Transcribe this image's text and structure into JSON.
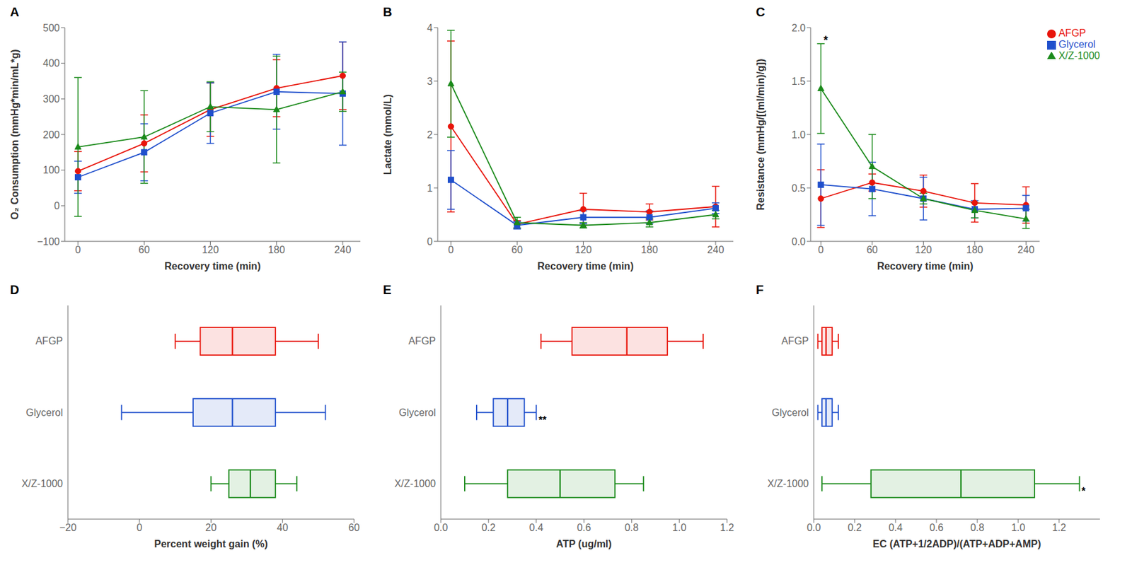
{
  "chart_data": [
    {
      "type": "line",
      "title": "A",
      "x_label": "Recovery time (min)",
      "y_label": "O₂ Consumption (mmHg*min/mL*g)",
      "x": [
        0,
        60,
        120,
        180,
        240
      ],
      "xlim": [
        -12,
        256
      ],
      "xticks": [
        0,
        60,
        120,
        180,
        240
      ],
      "ylim": [
        -100,
        500
      ],
      "yticks": [
        {
          "value": -100,
          "label": "−100"
        },
        0,
        100,
        200,
        300,
        400,
        500
      ],
      "series": [
        {
          "name": "AFGP",
          "color": "#E8140A",
          "marker": "circle",
          "values": [
            97,
            175,
            270,
            330,
            365
          ],
          "errors": [
            55,
            80,
            75,
            80,
            95
          ]
        },
        {
          "name": "Glycerol",
          "color": "#1F4FCC",
          "marker": "square",
          "values": [
            80,
            150,
            260,
            320,
            315
          ],
          "errors": [
            45,
            80,
            85,
            105,
            145
          ]
        },
        {
          "name": "X/Z-1000",
          "color": "#1A8A1A",
          "marker": "triangle",
          "values": [
            165,
            193,
            278,
            270,
            320
          ],
          "errors": [
            195,
            130,
            70,
            150,
            55
          ]
        }
      ]
    },
    {
      "type": "line",
      "title": "B",
      "x_label": "Recovery time (min)",
      "y_label": "Lactate (mmol/L)",
      "x": [
        0,
        60,
        120,
        180,
        240
      ],
      "xlim": [
        -12,
        256
      ],
      "xticks": [
        0,
        60,
        120,
        180,
        240
      ],
      "ylim": [
        0,
        4
      ],
      "yticks": [
        0,
        1,
        2,
        3,
        4
      ],
      "series": [
        {
          "name": "AFGP",
          "color": "#E8140A",
          "marker": "circle",
          "values": [
            2.15,
            0.32,
            0.6,
            0.55,
            0.65
          ],
          "errors": [
            1.6,
            0.07,
            0.3,
            0.15,
            0.38
          ]
        },
        {
          "name": "Glycerol",
          "color": "#1F4FCC",
          "marker": "square",
          "values": [
            1.15,
            0.3,
            0.45,
            0.45,
            0.62
          ],
          "errors": [
            0.55,
            0.07,
            0.12,
            0.12,
            0.1
          ]
        },
        {
          "name": "X/Z-1000",
          "color": "#1A8A1A",
          "marker": "triangle",
          "values": [
            2.95,
            0.35,
            0.3,
            0.35,
            0.5
          ],
          "errors": [
            1.0,
            0.1,
            0.05,
            0.08,
            0.08
          ]
        }
      ]
    },
    {
      "type": "line",
      "title": "C",
      "x_label": "Recovery time (min)",
      "y_label": "Resistance (mmHg/[(ml/min)/g])",
      "x": [
        0,
        60,
        120,
        180,
        240
      ],
      "xlim": [
        -12,
        256
      ],
      "xticks": [
        0,
        60,
        120,
        180,
        240
      ],
      "ylim": [
        0,
        2.0
      ],
      "yticks": [
        {
          "value": 0,
          "label": "0.0"
        },
        0.5,
        {
          "value": 1,
          "label": "1.0"
        },
        1.5,
        {
          "value": 2,
          "label": "2.0"
        }
      ],
      "legend": "upper right",
      "annotations": [
        {
          "text": "*",
          "x": 3,
          "y": 1.93
        }
      ],
      "series": [
        {
          "name": "AFGP",
          "color": "#E8140A",
          "marker": "circle",
          "values": [
            0.4,
            0.55,
            0.47,
            0.36,
            0.34
          ],
          "errors": [
            0.27,
            0.08,
            0.15,
            0.18,
            0.17
          ]
        },
        {
          "name": "Glycerol",
          "color": "#1F4FCC",
          "marker": "square",
          "values": [
            0.53,
            0.49,
            0.4,
            0.3,
            0.31
          ],
          "errors": [
            0.38,
            0.25,
            0.2,
            0.08,
            0.12
          ]
        },
        {
          "name": "X/Z-1000",
          "color": "#1A8A1A",
          "marker": "triangle",
          "values": [
            1.43,
            0.7,
            0.4,
            0.29,
            0.21
          ],
          "errors": [
            0.42,
            0.3,
            0.05,
            0.07,
            0.09
          ]
        }
      ]
    },
    {
      "type": "box",
      "orientation": "horizontal",
      "title": "D",
      "x_label": "Percent weight gain (%)",
      "xlim": [
        -20,
        60
      ],
      "xticks": [
        {
          "value": -20,
          "label": "−20"
        },
        0,
        20,
        40,
        60
      ],
      "series": [
        {
          "name": "AFGP",
          "color": "#E8140A",
          "q1": 17,
          "median": 26,
          "q3": 38,
          "min": 10,
          "max": 50
        },
        {
          "name": "Glycerol",
          "color": "#1F4FCC",
          "q1": 15,
          "median": 26,
          "q3": 38,
          "min": -5,
          "max": 52
        },
        {
          "name": "X/Z-1000",
          "color": "#1A8A1A",
          "q1": 25,
          "median": 31,
          "q3": 38,
          "min": 20,
          "max": 44
        }
      ]
    },
    {
      "type": "box",
      "orientation": "horizontal",
      "title": "E",
      "x_label": "ATP (ug/ml)",
      "xlim": [
        0.0,
        1.2
      ],
      "xticks": [
        {
          "value": 0,
          "label": "0.0"
        },
        0.2,
        0.4,
        0.6,
        0.8,
        {
          "value": 1,
          "label": "1.0"
        },
        1.2
      ],
      "annotations": [
        {
          "text": "**",
          "x": 0.41,
          "y": "Glycerol"
        }
      ],
      "series": [
        {
          "name": "AFGP",
          "color": "#E8140A",
          "q1": 0.55,
          "median": 0.78,
          "q3": 0.95,
          "min": 0.42,
          "max": 1.1
        },
        {
          "name": "Glycerol",
          "color": "#1F4FCC",
          "q1": 0.22,
          "median": 0.28,
          "q3": 0.35,
          "min": 0.15,
          "max": 0.4
        },
        {
          "name": "X/Z-1000",
          "color": "#1A8A1A",
          "q1": 0.28,
          "median": 0.5,
          "q3": 0.73,
          "min": 0.1,
          "max": 0.85
        }
      ]
    },
    {
      "type": "box",
      "orientation": "horizontal",
      "title": "F",
      "x_label": "EC (ATP+1/2ADP)/(ATP+ADP+AMP)",
      "xlim": [
        0.0,
        1.4
      ],
      "xticks": [
        {
          "value": 0,
          "label": "0.0"
        },
        0.2,
        0.4,
        0.6,
        0.8,
        {
          "value": 1,
          "label": "1.0"
        },
        1.2
      ],
      "annotations": [
        {
          "text": "*",
          "x": 1.31,
          "y": "X/Z-1000"
        }
      ],
      "series": [
        {
          "name": "AFGP",
          "color": "#E8140A",
          "q1": 0.04,
          "median": 0.06,
          "q3": 0.09,
          "min": 0.02,
          "max": 0.12
        },
        {
          "name": "Glycerol",
          "color": "#1F4FCC",
          "q1": 0.04,
          "median": 0.06,
          "q3": 0.09,
          "min": 0.02,
          "max": 0.12
        },
        {
          "name": "X/Z-1000",
          "color": "#1A8A1A",
          "q1": 0.28,
          "median": 0.72,
          "q3": 1.08,
          "min": 0.04,
          "max": 1.3
        }
      ]
    }
  ]
}
